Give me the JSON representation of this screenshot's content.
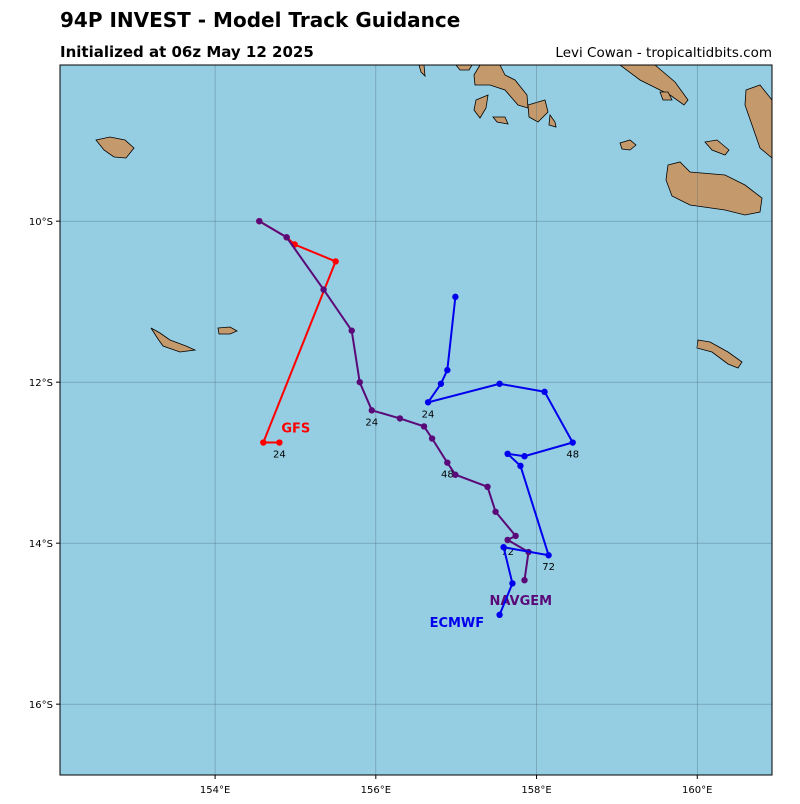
{
  "header": {
    "title": "94P INVEST - Model Track Guidance",
    "subtitle": "Initialized at 06z May 12 2025",
    "credit": "Levi Cowan - tropicaltidbits.com"
  },
  "map": {
    "lonlim": [
      152.07,
      160.93
    ],
    "latlim": [
      -16.88,
      -8.06
    ],
    "ocean_color": "#95cde3",
    "land_color": "#c49a6c",
    "lonticks": [
      {
        "value": 154,
        "label": "154°E"
      },
      {
        "value": 156,
        "label": "156°E"
      },
      {
        "value": 158,
        "label": "158°E"
      },
      {
        "value": 160,
        "label": "160°E"
      }
    ],
    "latticks": [
      {
        "value": -10,
        "label": "10°S"
      },
      {
        "value": -12,
        "label": "12°S"
      },
      {
        "value": -14,
        "label": "14°S"
      },
      {
        "value": -16,
        "label": "16°S"
      }
    ]
  },
  "tracks": [
    {
      "name": "GFS",
      "color": "#ff0000",
      "lon": [
        154.55,
        154.89,
        154.99,
        155.5,
        154.6,
        154.8
      ],
      "lat": [
        -10.0,
        -10.2,
        -10.29,
        -10.5,
        -12.75,
        -12.75
      ],
      "time_labels": [
        null,
        null,
        null,
        null,
        null,
        "24"
      ]
    },
    {
      "name": "NAVGEM",
      "color": "#5a0a78",
      "lon": [
        154.55,
        154.89,
        155.35,
        155.7,
        155.8,
        155.95,
        156.3,
        156.6,
        156.7,
        156.89,
        156.99,
        157.39,
        157.49,
        157.74,
        157.64,
        157.9,
        157.85
      ],
      "lat": [
        -10.0,
        -10.2,
        -10.85,
        -11.36,
        -12.0,
        -12.35,
        -12.45,
        -12.55,
        -12.7,
        -13.0,
        -13.15,
        -13.3,
        -13.61,
        -13.91,
        -13.96,
        -14.11,
        -14.46
      ],
      "time_labels": [
        null,
        null,
        null,
        null,
        null,
        "24",
        null,
        null,
        null,
        "48",
        null,
        null,
        null,
        null,
        "72",
        null,
        null
      ]
    },
    {
      "name": "ECMWF",
      "color": "#0000ee",
      "lon": [
        156.99,
        156.89,
        156.81,
        156.65,
        157.54,
        158.1,
        158.45,
        157.85,
        157.64,
        157.8,
        158.15,
        157.59,
        157.7,
        157.54
      ],
      "lat": [
        -10.94,
        -11.85,
        -12.02,
        -12.25,
        -12.02,
        -12.12,
        -12.75,
        -12.92,
        -12.89,
        -13.04,
        -14.15,
        -14.05,
        -14.5,
        -14.89
      ],
      "time_labels": [
        null,
        null,
        null,
        "24",
        null,
        null,
        "48",
        null,
        null,
        null,
        "72",
        null,
        null,
        null
      ]
    }
  ]
}
